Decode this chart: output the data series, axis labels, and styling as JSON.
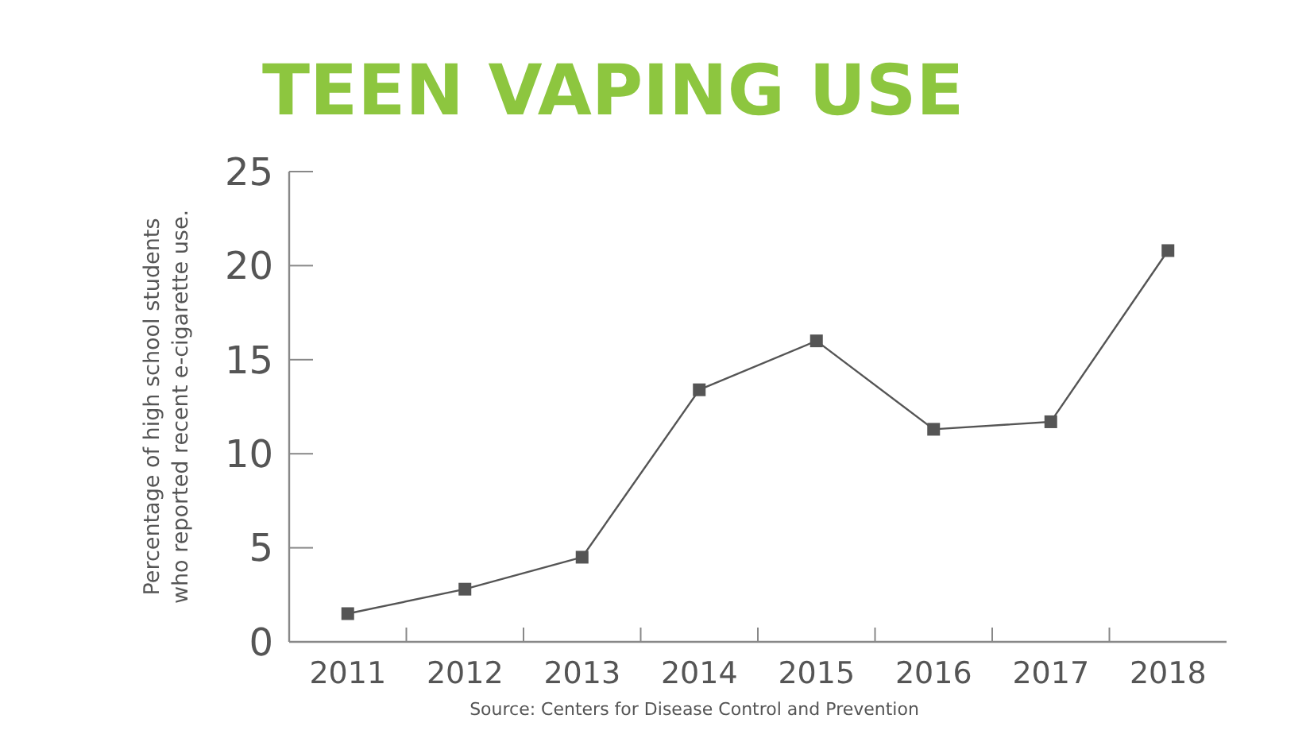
{
  "chart_data": {
    "type": "line",
    "title": "TEEN VAPING USE",
    "ylabel": "Percentage of high school students\nwho reported recent e-cigarette use.",
    "annotations": [
      "Source: Centers for Disease Control and Prevention"
    ],
    "categories": [
      "2011",
      "2012",
      "2013",
      "2014",
      "2015",
      "2016",
      "2017",
      "2018"
    ],
    "series": [
      {
        "color": "#555555",
        "values": [
          1.5,
          2.8,
          4.5,
          13.4,
          16.0,
          11.3,
          11.7,
          20.8
        ]
      }
    ],
    "ylim": [
      0,
      25
    ],
    "yticks": [
      0,
      5,
      10,
      15,
      20,
      25
    ],
    "marker": "square",
    "line_style": "solid",
    "grid": false
  }
}
